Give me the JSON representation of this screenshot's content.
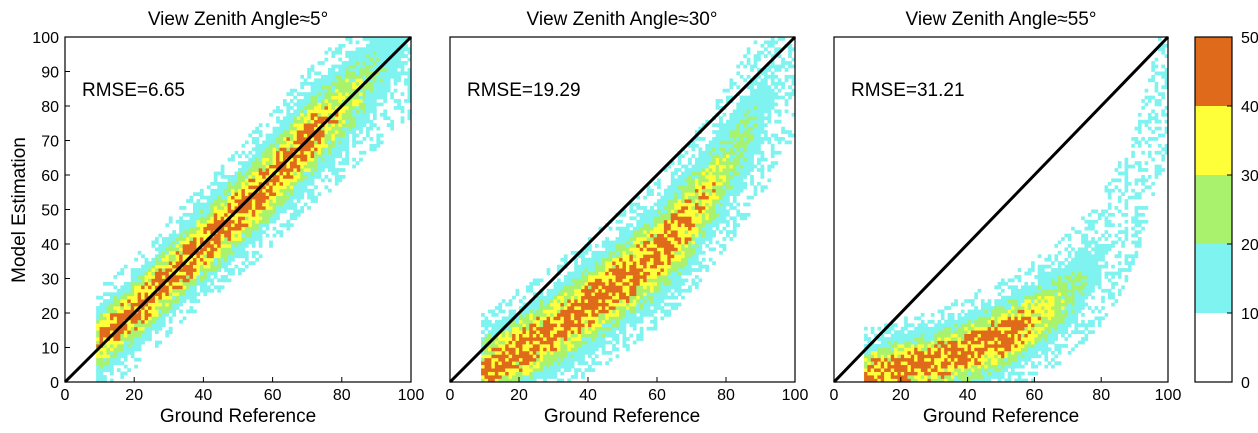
{
  "chart_data": [
    {
      "type": "heatmap",
      "title": "View Zenith Angle≈5°",
      "xlabel": "Ground Reference",
      "ylabel": "Model Estimation",
      "annotation": "RMSE=6.65",
      "xlim": [
        0,
        100
      ],
      "ylim": [
        0,
        100
      ],
      "xticks": [
        "0",
        "20",
        "40",
        "60",
        "80",
        "100"
      ],
      "yticks": [
        "0",
        "10",
        "20",
        "30",
        "40",
        "50",
        "60",
        "70",
        "80",
        "90",
        "100"
      ],
      "reference_line": "1:1",
      "density_ridge": {
        "x": [
          10,
          20,
          30,
          40,
          50,
          60,
          70,
          80,
          90,
          97
        ],
        "y": [
          12,
          20,
          30,
          40,
          49,
          59,
          70,
          80,
          90,
          98
        ]
      },
      "spread": 4.5,
      "high_density_range": [
        10,
        72
      ]
    },
    {
      "type": "heatmap",
      "title": "View Zenith Angle≈30°",
      "xlabel": "Ground Reference",
      "ylabel": "",
      "annotation": "RMSE=19.29",
      "xlim": [
        0,
        100
      ],
      "ylim": [
        0,
        100
      ],
      "xticks": [
        "0",
        "20",
        "40",
        "60",
        "80",
        "100"
      ],
      "reference_line": "1:1",
      "density_ridge": {
        "x": [
          10,
          20,
          30,
          40,
          50,
          60,
          70,
          80,
          90,
          97
        ],
        "y": [
          3,
          9,
          15,
          22,
          29,
          37,
          48,
          62,
          78,
          93
        ]
      },
      "spread": 5,
      "high_density_range": [
        10,
        68
      ]
    },
    {
      "type": "heatmap",
      "title": "View Zenith Angle≈55°",
      "xlabel": "Ground Reference",
      "ylabel": "",
      "annotation": "RMSE=31.21",
      "xlim": [
        0,
        100
      ],
      "ylim": [
        0,
        100
      ],
      "xticks": [
        "0",
        "20",
        "40",
        "60",
        "80",
        "100"
      ],
      "reference_line": "1:1",
      "density_ridge": {
        "x": [
          10,
          20,
          30,
          40,
          50,
          60,
          70,
          80,
          90,
          97
        ],
        "y": [
          2,
          4,
          6,
          9,
          13,
          18,
          25,
          35,
          52,
          80
        ]
      },
      "spread": 4,
      "high_density_range": [
        10,
        55
      ]
    }
  ],
  "colorbar": {
    "ticks": [
      "0",
      "10",
      "20",
      "30",
      "40",
      "50"
    ],
    "range": [
      0,
      50
    ],
    "bands": [
      {
        "from": 0,
        "to": 10,
        "color": "#ffffff"
      },
      {
        "from": 10,
        "to": 20,
        "color": "#7ff3ef"
      },
      {
        "from": 20,
        "to": 30,
        "color": "#a8f26d"
      },
      {
        "from": 30,
        "to": 40,
        "color": "#ffff39"
      },
      {
        "from": 40,
        "to": 50,
        "color": "#e06a1b"
      }
    ]
  }
}
